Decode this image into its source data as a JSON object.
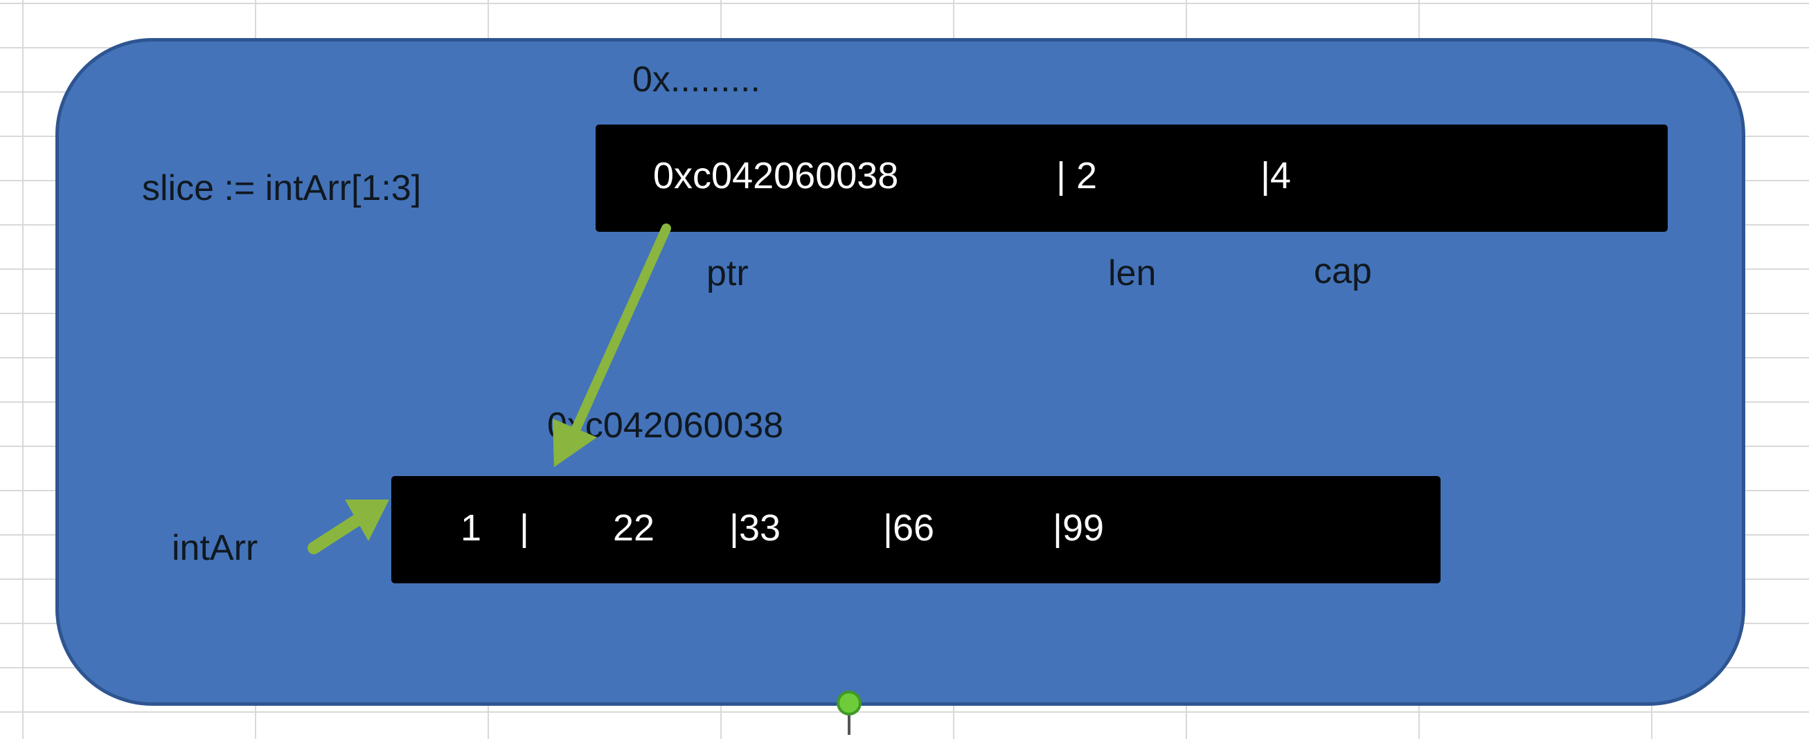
{
  "slice_decl": "slice := intArr[1:3]",
  "header_addr": "0x.........",
  "slice_header": {
    "ptr_value": "0xc042060038",
    "len_value": "| 2",
    "cap_value": "|4",
    "ptr_label": "ptr",
    "len_label": "len",
    "cap_label": "cap"
  },
  "array_addr": "0xc042060038",
  "array_name": "intArr",
  "array_cells": [
    "1",
    "|",
    "22",
    "|33",
    "|66",
    "|99"
  ],
  "colors": {
    "panel": "#4473b9",
    "arrow": "#8ab53f",
    "bar": "#000000"
  },
  "icons": [
    "arrow-icon",
    "pointer-arrow-icon",
    "anchor-handle-icon"
  ]
}
